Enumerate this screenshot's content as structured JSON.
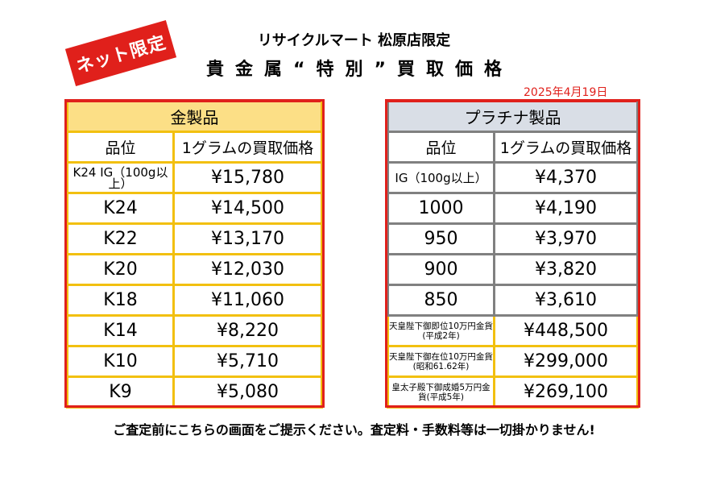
{
  "stamp": "ネット限定",
  "store_line": "リサイクルマート 松原店限定",
  "title": "貴金属“特別”買取価格",
  "date": "2025年4月19日",
  "gold": {
    "title": "金製品",
    "col_grade": "品位",
    "col_price": "1グラムの買取価格",
    "rows": [
      {
        "grade": "K24 IG（100g以上）",
        "price": "¥15,780"
      },
      {
        "grade": "K24",
        "price": "¥14,500"
      },
      {
        "grade": "K22",
        "price": "¥13,170"
      },
      {
        "grade": "K20",
        "price": "¥12,030"
      },
      {
        "grade": "K18",
        "price": "¥11,060"
      },
      {
        "grade": "K14",
        "price": "¥8,220"
      },
      {
        "grade": "K10",
        "price": "¥5,710"
      },
      {
        "grade": "K9",
        "price": "¥5,080"
      }
    ]
  },
  "platinum": {
    "title": "プラチナ製品",
    "col_grade": "品位",
    "col_price": "1グラムの買取価格",
    "rows": [
      {
        "grade": "IG（100g以上）",
        "price": "¥4,370"
      },
      {
        "grade": "1000",
        "price": "¥4,190"
      },
      {
        "grade": "950",
        "price": "¥3,970"
      },
      {
        "grade": "900",
        "price": "¥3,820"
      },
      {
        "grade": "850",
        "price": "¥3,610"
      },
      {
        "grade": "天皇陛下御即位10万円金貨(平成2年)",
        "price": "¥448,500"
      },
      {
        "grade": "天皇陛下御在位10万円金貨(昭和61.62年)",
        "price": "¥299,000"
      },
      {
        "grade": "皇太子殿下御成婚5万円金貨(平成5年)",
        "price": "¥269,100"
      }
    ]
  },
  "footer": "ご査定前にこちらの画面をご提示ください。査定料・手数料等は一切掛かりません!",
  "colors": {
    "accent_red": "#e0201b",
    "gold_border": "#f2c010",
    "gold_header": "#fcdf86",
    "platinum_border": "#808080",
    "platinum_header": "#d9dee6"
  }
}
